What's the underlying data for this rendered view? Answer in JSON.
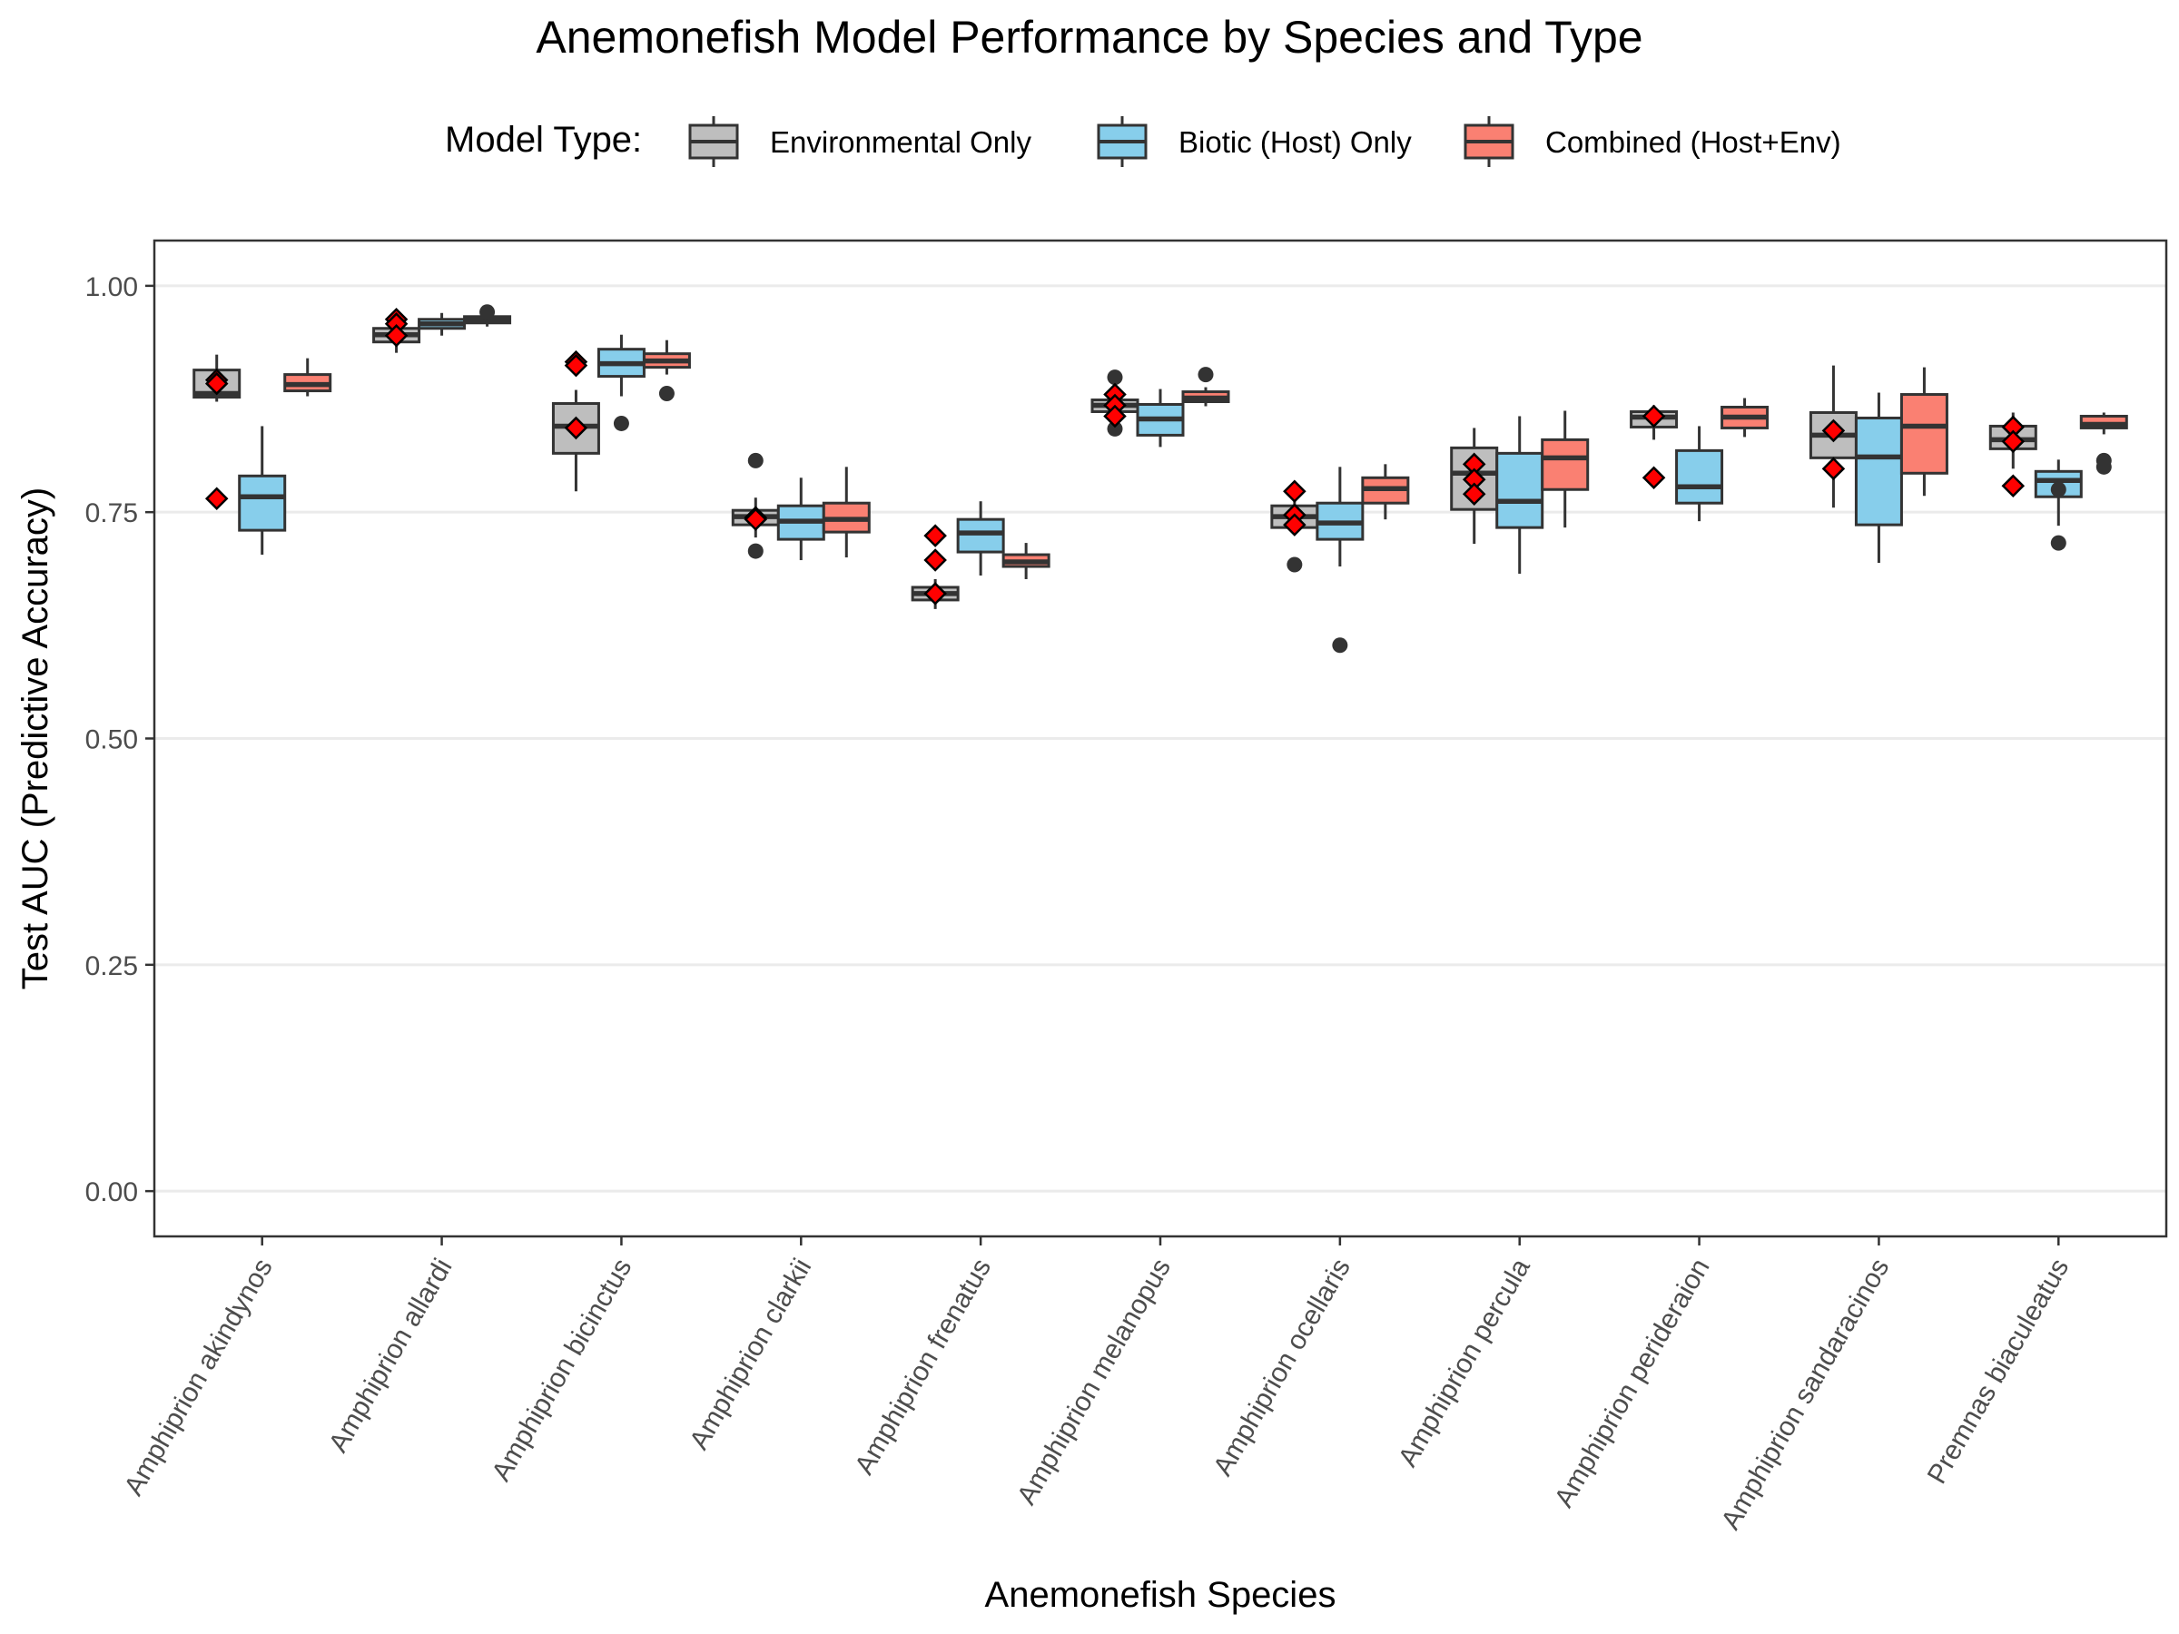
{
  "chart_data": {
    "type": "box",
    "title": "Anemonefish Model Performance by Species and Type",
    "xlabel": "Anemonefish Species",
    "ylabel": "Test AUC (Predictive Accuracy)",
    "ylim": [
      -0.05,
      1.05
    ],
    "yticks": [
      0.0,
      0.25,
      0.5,
      0.75,
      1.0
    ],
    "ytick_labels": [
      "0.00",
      "0.25",
      "0.50",
      "0.75",
      "1.00"
    ],
    "grid": "horizontal major",
    "legend": {
      "title": "Model Type:",
      "position": "top",
      "entries": [
        {
          "label": "Environmental Only",
          "color": "#bebebe"
        },
        {
          "label": "Biotic (Host) Only",
          "color": "#87ceeb"
        },
        {
          "label": "Combined (Host+Env)",
          "color": "#fa8072"
        }
      ]
    },
    "categories": [
      "Amphiprion akindynos",
      "Amphiprion allardi",
      "Amphiprion bicinctus",
      "Amphiprion clarkii",
      "Amphiprion frenatus",
      "Amphiprion melanopus",
      "Amphiprion ocellaris",
      "Amphiprion percula",
      "Amphiprion perideraion",
      "Amphiprion sandaracinos",
      "Premnas biaculeatus"
    ],
    "series": [
      {
        "name": "Environmental Only",
        "color": "#bebebe",
        "boxes": [
          {
            "q1": 0.877,
            "median": 0.881,
            "q3": 0.907,
            "lower": 0.872,
            "upper": 0.924,
            "outliers": []
          },
          {
            "q1": 0.938,
            "median": 0.946,
            "q3": 0.953,
            "lower": 0.926,
            "upper": 0.96,
            "outliers": []
          },
          {
            "q1": 0.815,
            "median": 0.845,
            "q3": 0.87,
            "lower": 0.773,
            "upper": 0.885,
            "outliers": []
          },
          {
            "q1": 0.736,
            "median": 0.745,
            "q3": 0.752,
            "lower": 0.722,
            "upper": 0.766,
            "outliers": [
              0.807,
              0.707
            ]
          },
          {
            "q1": 0.653,
            "median": 0.66,
            "q3": 0.667,
            "lower": 0.643,
            "upper": 0.676,
            "outliers": []
          },
          {
            "q1": 0.861,
            "median": 0.868,
            "q3": 0.874,
            "lower": 0.854,
            "upper": 0.882,
            "outliers": [
              0.899,
              0.842
            ]
          },
          {
            "q1": 0.733,
            "median": 0.745,
            "q3": 0.757,
            "lower": 0.727,
            "upper": 0.766,
            "outliers": [
              0.692
            ]
          },
          {
            "q1": 0.753,
            "median": 0.793,
            "q3": 0.821,
            "lower": 0.715,
            "upper": 0.843,
            "outliers": []
          },
          {
            "q1": 0.844,
            "median": 0.855,
            "q3": 0.861,
            "lower": 0.83,
            "upper": 0.868,
            "outliers": []
          },
          {
            "q1": 0.81,
            "median": 0.835,
            "q3": 0.86,
            "lower": 0.755,
            "upper": 0.912,
            "outliers": []
          },
          {
            "q1": 0.82,
            "median": 0.83,
            "q3": 0.845,
            "lower": 0.798,
            "upper": 0.86,
            "outliers": []
          }
        ]
      },
      {
        "name": "Biotic (Host) Only",
        "color": "#87ceeb",
        "boxes": [
          {
            "q1": 0.73,
            "median": 0.767,
            "q3": 0.79,
            "lower": 0.703,
            "upper": 0.845,
            "outliers": []
          },
          {
            "q1": 0.953,
            "median": 0.958,
            "q3": 0.963,
            "lower": 0.945,
            "upper": 0.97,
            "outliers": []
          },
          {
            "q1": 0.9,
            "median": 0.914,
            "q3": 0.93,
            "lower": 0.878,
            "upper": 0.946,
            "outliers": [
              0.848
            ]
          },
          {
            "q1": 0.72,
            "median": 0.74,
            "q3": 0.757,
            "lower": 0.697,
            "upper": 0.788,
            "outliers": []
          },
          {
            "q1": 0.706,
            "median": 0.727,
            "q3": 0.742,
            "lower": 0.68,
            "upper": 0.762,
            "outliers": []
          },
          {
            "q1": 0.835,
            "median": 0.853,
            "q3": 0.869,
            "lower": 0.822,
            "upper": 0.886,
            "outliers": []
          },
          {
            "q1": 0.72,
            "median": 0.738,
            "q3": 0.76,
            "lower": 0.69,
            "upper": 0.8,
            "outliers": [
              0.603
            ]
          },
          {
            "q1": 0.733,
            "median": 0.762,
            "q3": 0.815,
            "lower": 0.682,
            "upper": 0.856,
            "outliers": []
          },
          {
            "q1": 0.76,
            "median": 0.778,
            "q3": 0.818,
            "lower": 0.74,
            "upper": 0.845,
            "outliers": []
          },
          {
            "q1": 0.736,
            "median": 0.811,
            "q3": 0.854,
            "lower": 0.694,
            "upper": 0.882,
            "outliers": []
          },
          {
            "q1": 0.767,
            "median": 0.785,
            "q3": 0.795,
            "lower": 0.735,
            "upper": 0.808,
            "outliers": [
              0.775,
              0.716
            ]
          }
        ]
      },
      {
        "name": "Combined (Host+Env)",
        "color": "#fa8072",
        "boxes": [
          {
            "q1": 0.884,
            "median": 0.891,
            "q3": 0.902,
            "lower": 0.878,
            "upper": 0.92,
            "outliers": []
          },
          {
            "q1": 0.959,
            "median": 0.962,
            "q3": 0.966,
            "lower": 0.955,
            "upper": 0.97,
            "outliers": [
              0.971
            ]
          },
          {
            "q1": 0.91,
            "median": 0.917,
            "q3": 0.925,
            "lower": 0.902,
            "upper": 0.94,
            "outliers": [
              0.881
            ]
          },
          {
            "q1": 0.728,
            "median": 0.742,
            "q3": 0.76,
            "lower": 0.7,
            "upper": 0.8,
            "outliers": []
          },
          {
            "q1": 0.69,
            "median": 0.695,
            "q3": 0.703,
            "lower": 0.676,
            "upper": 0.716,
            "outliers": []
          },
          {
            "q1": 0.872,
            "median": 0.876,
            "q3": 0.883,
            "lower": 0.867,
            "upper": 0.888,
            "outliers": [
              0.902
            ]
          },
          {
            "q1": 0.76,
            "median": 0.776,
            "q3": 0.788,
            "lower": 0.742,
            "upper": 0.803,
            "outliers": []
          },
          {
            "q1": 0.775,
            "median": 0.81,
            "q3": 0.83,
            "lower": 0.733,
            "upper": 0.862,
            "outliers": []
          },
          {
            "q1": 0.843,
            "median": 0.855,
            "q3": 0.866,
            "lower": 0.833,
            "upper": 0.876,
            "outliers": []
          },
          {
            "q1": 0.793,
            "median": 0.845,
            "q3": 0.88,
            "lower": 0.768,
            "upper": 0.91,
            "outliers": []
          },
          {
            "q1": 0.843,
            "median": 0.847,
            "q3": 0.856,
            "lower": 0.836,
            "upper": 0.86,
            "outliers": [
              0.807,
              0.8
            ]
          }
        ]
      }
    ],
    "red_diamonds": {
      "color": "#ff0000",
      "points": [
        {
          "category": "Amphiprion akindynos",
          "values": [
            0.896,
            0.892,
            0.765
          ]
        },
        {
          "category": "Amphiprion allardi",
          "values": [
            0.963,
            0.958,
            0.945
          ]
        },
        {
          "category": "Amphiprion bicinctus",
          "values": [
            0.916,
            0.912,
            0.843
          ]
        },
        {
          "category": "Amphiprion clarkii",
          "values": [
            0.744,
            0.742
          ]
        },
        {
          "category": "Amphiprion frenatus",
          "values": [
            0.724,
            0.697,
            0.66
          ]
        },
        {
          "category": "Amphiprion melanopus",
          "values": [
            0.88,
            0.868,
            0.856
          ]
        },
        {
          "category": "Amphiprion ocellaris",
          "values": [
            0.773,
            0.747,
            0.736
          ]
        },
        {
          "category": "Amphiprion percula",
          "values": [
            0.803,
            0.786,
            0.77
          ]
        },
        {
          "category": "Amphiprion perideraion",
          "values": [
            0.856,
            0.788
          ]
        },
        {
          "category": "Amphiprion sandaracinos",
          "values": [
            0.84,
            0.798
          ]
        },
        {
          "category": "Premnas biaculeatus",
          "values": [
            0.844,
            0.828,
            0.779
          ]
        }
      ]
    }
  }
}
